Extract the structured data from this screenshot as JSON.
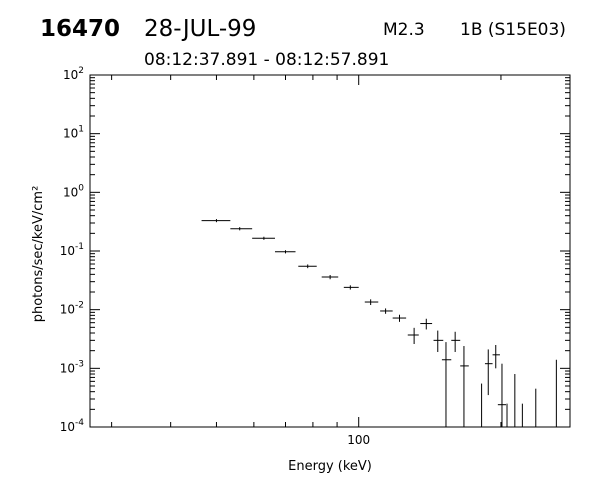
{
  "header": {
    "event_id": "16470",
    "date": "28-JUL-99",
    "flare_class": "M2.3",
    "flare_location": "1B (S15E03)",
    "time_range": "08:12:37.891 - 08:12:57.891"
  },
  "chart_data": {
    "type": "scatter",
    "title": "",
    "xlabel": "Energy (keV)",
    "ylabel": "photons/sec/keV/cm²",
    "xscale": "log",
    "yscale": "log",
    "xlim": [
      27,
      280
    ],
    "ylim": [
      0.0001,
      100
    ],
    "x_tick_labels": [
      "100"
    ],
    "y_tick_labels": [
      {
        "base": "10",
        "exp": "-4"
      },
      {
        "base": "10",
        "exp": "-3"
      },
      {
        "base": "10",
        "exp": "-2"
      },
      {
        "base": "10",
        "exp": "-1"
      },
      {
        "base": "10",
        "exp": "0"
      },
      {
        "base": "10",
        "exp": "1"
      },
      {
        "base": "10",
        "exp": "2"
      }
    ],
    "grid": false,
    "legend": "none",
    "points": [
      {
        "x": 50,
        "xerr": [
          46.5,
          53.5
        ],
        "y": 0.33,
        "yerr": [
          0.31,
          0.35
        ]
      },
      {
        "x": 56,
        "xerr": [
          53.5,
          59.5
        ],
        "y": 0.24,
        "yerr": [
          0.225,
          0.255
        ]
      },
      {
        "x": 63,
        "xerr": [
          59.5,
          66.5
        ],
        "y": 0.165,
        "yerr": [
          0.155,
          0.175
        ]
      },
      {
        "x": 70,
        "xerr": [
          66.5,
          73.5
        ],
        "y": 0.097,
        "yerr": [
          0.091,
          0.103
        ]
      },
      {
        "x": 78,
        "xerr": [
          74.5,
          81.5
        ],
        "y": 0.055,
        "yerr": [
          0.051,
          0.059
        ]
      },
      {
        "x": 87,
        "xerr": [
          83.5,
          90.5
        ],
        "y": 0.036,
        "yerr": [
          0.033,
          0.039
        ]
      },
      {
        "x": 96,
        "xerr": [
          93,
          100
        ],
        "y": 0.024,
        "yerr": [
          0.022,
          0.026
        ]
      },
      {
        "x": 106,
        "xerr": [
          103,
          110
        ],
        "y": 0.0135,
        "yerr": [
          0.012,
          0.015
        ]
      },
      {
        "x": 114,
        "xerr": [
          111,
          118
        ],
        "y": 0.0095,
        "yerr": [
          0.0085,
          0.0105
        ]
      },
      {
        "x": 122,
        "xerr": [
          118,
          126
        ],
        "y": 0.0072,
        "yerr": [
          0.0062,
          0.0082
        ]
      },
      {
        "x": 131,
        "xerr": [
          127,
          134
        ],
        "y": 0.0037,
        "yerr": [
          0.0026,
          0.0049
        ]
      },
      {
        "x": 139,
        "xerr": [
          135,
          143
        ],
        "y": 0.0058,
        "yerr": [
          0.0046,
          0.007
        ]
      },
      {
        "x": 147,
        "xerr": [
          144,
          151
        ],
        "y": 0.003,
        "yerr": [
          0.0019,
          0.0044
        ]
      },
      {
        "x": 153,
        "xerr": [
          150,
          157
        ],
        "y": 0.0014,
        "yerr": [
          0.0001,
          0.0028
        ]
      },
      {
        "x": 160,
        "xerr": [
          157,
          164
        ],
        "y": 0.003,
        "yerr": [
          0.0019,
          0.0042
        ]
      },
      {
        "x": 167,
        "xerr": [
          164,
          171
        ],
        "y": 0.0011,
        "yerr": [
          0.0001,
          0.0024
        ]
      },
      {
        "x": 182,
        "xerr": [
          182,
          182
        ],
        "y": 0.00055,
        "yerr": [
          0.0001,
          0.00055
        ]
      },
      {
        "x": 188,
        "xerr": [
          185,
          192
        ],
        "y": 0.0012,
        "yerr": [
          0.00035,
          0.0021
        ]
      },
      {
        "x": 195,
        "xerr": [
          192,
          199
        ],
        "y": 0.0017,
        "yerr": [
          0.001,
          0.0025
        ]
      },
      {
        "x": 201,
        "xerr": [
          197,
          205
        ],
        "y": 0.00024,
        "yerr": [
          0.0001,
          0.0012
        ]
      },
      {
        "x": 206,
        "xerr": [
          206,
          206
        ],
        "y": 0.00025,
        "yerr": [
          0.0001,
          0.00025
        ]
      },
      {
        "x": 214,
        "xerr": [
          214,
          214
        ],
        "y": 0.0008,
        "yerr": [
          0.0001,
          0.0008
        ]
      },
      {
        "x": 222,
        "xerr": [
          222,
          222
        ],
        "y": 0.00025,
        "yerr": [
          0.0001,
          0.00025
        ]
      },
      {
        "x": 237,
        "xerr": [
          237,
          237
        ],
        "y": 0.00045,
        "yerr": [
          0.0001,
          0.00045
        ]
      },
      {
        "x": 262,
        "xerr": [
          258,
          266
        ],
        "y": 0.0001,
        "yerr": [
          0.0001,
          0.0014
        ]
      }
    ]
  }
}
